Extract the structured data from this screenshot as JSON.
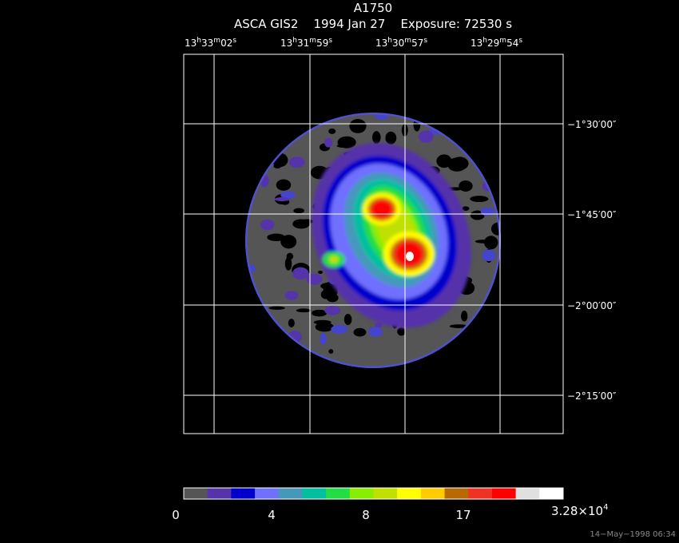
{
  "header": {
    "title": "A1750",
    "subtitle": "ASCA GIS2    1994 Jan 27    Exposure: 72530 s"
  },
  "ra_labels": [
    [
      "13",
      "h",
      "33",
      "m",
      "02",
      "s"
    ],
    [
      "13",
      "h",
      "31",
      "m",
      "59",
      "s"
    ],
    [
      "13",
      "h",
      "30",
      "m",
      "57",
      "s"
    ],
    [
      "13",
      "h",
      "29",
      "m",
      "54",
      "s"
    ]
  ],
  "dec_labels": [
    "−1°30′00″",
    "−1°45′00″",
    "−2°00′00″",
    "−2°15′00″"
  ],
  "colorbar": {
    "colors": [
      "#555555",
      "#5533aa",
      "#0000cc",
      "#7070ff",
      "#4499bb",
      "#00c0a0",
      "#22dd44",
      "#88ee00",
      "#c0e000",
      "#ffff00",
      "#ffcc00",
      "#b86a00",
      "#ee3322",
      "#ff0000",
      "#e0e0e0",
      "#ffffff"
    ],
    "labels": [
      "0",
      "4",
      "8",
      "17"
    ],
    "max_label": {
      "mantissa": "3.28×10",
      "exponent": "4"
    }
  },
  "timestamp": "14−May−1998 06:34"
}
